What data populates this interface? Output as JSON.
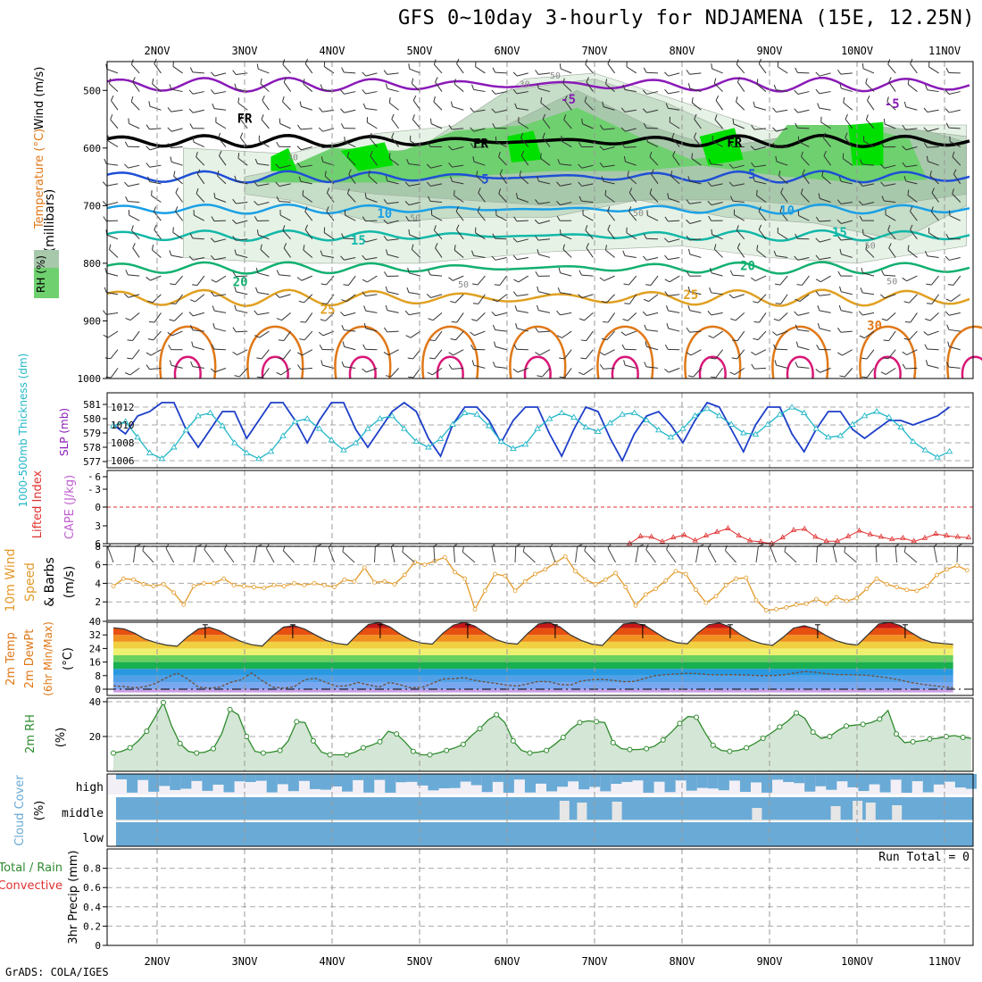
{
  "title": "GFS 0~10day 3-hourly for NDJAMENA (15E, 12.25N)",
  "footer": "GrADS: COLA/IGES",
  "dates": [
    "2NOV",
    "3NOV",
    "4NOV",
    "5NOV",
    "6NOV",
    "7NOV",
    "8NOV",
    "9NOV",
    "10NOV",
    "11NOV"
  ],
  "colors": {
    "purple": "#8a1ab8",
    "blue": "#1f4fd6",
    "lightblue": "#1aa0e6",
    "teal": "#12b8a8",
    "green": "#12b070",
    "orange": "#e0a020",
    "darkorange": "#e07818",
    "magenta": "#d81878",
    "cloud": "#6aaad6",
    "rh_green": "#2e8b2e",
    "wind_orange": "#e39a2a",
    "slp_blue": "#1e3fc8",
    "thick_cyan": "#22b6c8",
    "lifted_red": "#e03030",
    "cape_purple": "#c060d0"
  },
  "chart_data": [
    {
      "type": "area",
      "panel": "upper-air",
      "ylabel": "(millibars)",
      "legend": [
        "RH (%)",
        "Temperature (°C)",
        "Wind (m/s)"
      ],
      "y_ticks": [
        500,
        600,
        700,
        800,
        900,
        1000
      ],
      "ylim": [
        1000,
        450
      ],
      "contour_labels": [
        {
          "text": "-5",
          "x": 4.7,
          "y": 515
        },
        {
          "text": "-5",
          "x": 8.4,
          "y": 523
        },
        {
          "text": "FR",
          "x": 1.0,
          "y": 548
        },
        {
          "text": "FR",
          "x": 3.7,
          "y": 592
        },
        {
          "text": "FR",
          "x": 6.6,
          "y": 590
        },
        {
          "text": "5",
          "x": 3.75,
          "y": 654
        },
        {
          "text": "5",
          "x": 6.8,
          "y": 645
        },
        {
          "text": "10",
          "x": 2.6,
          "y": 713
        },
        {
          "text": "10",
          "x": 7.2,
          "y": 708
        },
        {
          "text": "15",
          "x": 2.3,
          "y": 760
        },
        {
          "text": "15",
          "x": 7.8,
          "y": 746
        },
        {
          "text": "20",
          "x": 0.95,
          "y": 832
        },
        {
          "text": "20",
          "x": 6.75,
          "y": 804
        },
        {
          "text": "25",
          "x": 1.95,
          "y": 880
        },
        {
          "text": "25",
          "x": 6.1,
          "y": 854
        },
        {
          "text": "30",
          "x": 8.2,
          "y": 908
        }
      ],
      "rh_labels": [
        {
          "text": "50",
          "x": 4.55,
          "y": 473
        },
        {
          "text": "30",
          "x": 4.2,
          "y": 488
        },
        {
          "text": "30",
          "x": 1.55,
          "y": 615
        },
        {
          "text": "50",
          "x": 2.95,
          "y": 720
        },
        {
          "text": "50",
          "x": 5.5,
          "y": 712
        },
        {
          "text": "50",
          "x": 8.15,
          "y": 768
        },
        {
          "text": "50",
          "x": 3.5,
          "y": 836
        },
        {
          "text": "50",
          "x": 8.4,
          "y": 830
        }
      ]
    },
    {
      "type": "line",
      "panel": "slp-thickness",
      "ylabel_left": "1000-500mb Thickness (dm)",
      "ylabel_right": "SLP (mb)",
      "left_ticks": [
        577,
        578,
        579,
        580,
        581
      ],
      "right_ticks": [
        1006,
        1008,
        1010,
        1012
      ],
      "series": [
        {
          "name": "SLP (mb)",
          "color": "#1e3fc8",
          "values": [
            1010.0,
            1009.0,
            1011.0,
            1011.5,
            1012.5,
            1012.5,
            1009.5,
            1007.5,
            1009.5,
            1011.5,
            1011.5,
            1008.5,
            1010.5,
            1012.5,
            1012.5,
            1010.5,
            1008.0,
            1010.5,
            1012.5,
            1012.5,
            1009.5,
            1007.5,
            1009.5,
            1011.5,
            1012.5,
            1011.5,
            1008.5,
            1006.5,
            1010.0,
            1012.0,
            1012.0,
            1010.5,
            1008.0,
            1010.5,
            1012.0,
            1012.0,
            1009.0,
            1006.5,
            1009.5,
            1012.0,
            1011.5,
            1008.5,
            1006.0,
            1009.0,
            1011.0,
            1011.5,
            1010.0,
            1008.0,
            1010.5,
            1012.5,
            1012.0,
            1009.5,
            1007.0,
            1010.0,
            1012.0,
            1012.0,
            1009.0,
            1007.0,
            1009.5,
            1011.5,
            1011.5,
            1009.5,
            1008.5,
            1009.5,
            1010.5,
            1010.5,
            1010.0,
            1010.5,
            1011.0,
            1012.0
          ]
        },
        {
          "name": "Thickness (dm)",
          "color": "#22b6c8",
          "values": [
            579.5,
            579.8,
            578.7,
            577.6,
            577.2,
            578.0,
            579.2,
            580.2,
            580.4,
            579.5,
            578.3,
            577.6,
            577.2,
            577.7,
            578.8,
            579.8,
            580.0,
            579.3,
            578.5,
            577.8,
            578.3,
            579.3,
            580.0,
            580.2,
            579.3,
            578.4,
            578.0,
            578.6,
            579.6,
            580.4,
            580.3,
            579.5,
            578.4,
            577.9,
            578.2,
            579.3,
            580.0,
            580.4,
            580.1,
            579.4,
            579.1,
            579.7,
            580.3,
            580.4,
            579.9,
            579.2,
            578.7,
            579.3,
            580.2,
            580.7,
            580.2,
            579.6,
            579.0,
            578.9,
            579.6,
            580.3,
            580.8,
            580.4,
            579.3,
            578.7,
            578.8,
            579.6,
            580.2,
            580.5,
            580.1,
            579.4,
            578.4,
            577.8,
            577.3,
            577.7
          ]
        }
      ]
    },
    {
      "type": "line",
      "panel": "cape-lifted",
      "ylabel_left": "Lifted Index",
      "ylabel_right": "CAPE (J/kg)",
      "ticks": [
        6,
        3,
        0,
        -3,
        -6
      ],
      "series": [
        {
          "name": "Lifted Index",
          "color": "#e03030",
          "x_start": 5.4,
          "values": [
            6.0,
            4.8,
            4.9,
            5.7,
            5.0,
            4.6,
            5.5,
            4.7,
            4.1,
            3.5,
            4.7,
            5.5,
            5.7,
            6.0,
            5.0,
            3.8,
            3.6,
            4.9,
            5.6,
            5.6,
            4.8,
            3.9,
            4.5,
            4.9,
            5.3,
            5.1,
            5.6,
            5.1,
            4.4,
            4.7,
            4.9,
            5.0
          ]
        }
      ]
    },
    {
      "type": "line",
      "panel": "wind10m",
      "ylabel": "10m Wind Speed & Barbs (m/s)",
      "yticks": [
        2,
        4,
        6,
        8
      ],
      "ylim": [
        0,
        8
      ],
      "series": [
        {
          "name": "10m Wind Speed",
          "color": "#e39a2a",
          "values": [
            3.7,
            4.5,
            4.4,
            3.9,
            3.7,
            3.9,
            3.0,
            1.7,
            3.7,
            4.0,
            4.0,
            4.5,
            3.8,
            3.7,
            3.6,
            3.5,
            3.8,
            3.7,
            4.0,
            3.8,
            4.0,
            3.8,
            3.6,
            4.4,
            4.2,
            5.7,
            4.1,
            4.2,
            3.9,
            4.9,
            6.3,
            6.0,
            6.4,
            6.8,
            5.2,
            4.5,
            1.2,
            3.2,
            5.0,
            4.8,
            3.2,
            4.2,
            5.0,
            5.5,
            6.2,
            6.9,
            5.3,
            4.4,
            3.9,
            4.4,
            5.1,
            3.6,
            1.6,
            2.8,
            3.4,
            4.3,
            5.3,
            5.0,
            3.3,
            1.9,
            2.6,
            3.8,
            4.5,
            4.6,
            2.2,
            1.1,
            1.2,
            1.4,
            1.7,
            1.8,
            2.3,
            1.8,
            2.5,
            2.1,
            2.4,
            3.4,
            4.5,
            3.9,
            3.6,
            3.3,
            3.2,
            3.7,
            4.9,
            5.5,
            5.9,
            5.4
          ]
        }
      ]
    },
    {
      "type": "area",
      "panel": "temp2m",
      "ylabel": "2m Temp 2m DewPt (6hr Min/Max) (°C)",
      "yticks": [
        0,
        8,
        16,
        24,
        32,
        40
      ],
      "ylim": [
        -2,
        40
      ],
      "series": [
        {
          "name": "2m Temp",
          "values": [
            36.2,
            35.5,
            33.0,
            29.5,
            27.5,
            26.0,
            25.3,
            31.0,
            35.5,
            36.5,
            34.5,
            31.0,
            28.2,
            26.2,
            25.4,
            31.6,
            36.6,
            37.4,
            35.4,
            32.0,
            28.8,
            27.0,
            26.2,
            32.6,
            38.2,
            39.2,
            36.8,
            32.4,
            29.0,
            27.2,
            26.6,
            33.0,
            37.8,
            39.4,
            37.2,
            33.0,
            29.2,
            27.2,
            26.6,
            33.0,
            38.4,
            39.2,
            36.8,
            32.0,
            28.8,
            26.6,
            25.8,
            32.4,
            38.4,
            39.0,
            37.6,
            33.6,
            29.6,
            27.4,
            26.8,
            33.2,
            38.0,
            39.0,
            36.8,
            32.2,
            28.8,
            26.8,
            25.8,
            30.6,
            36.0,
            37.4,
            35.6,
            31.8,
            28.6,
            26.8,
            26.0,
            32.2,
            38.4,
            39.4,
            37.6,
            33.6,
            29.8,
            27.6,
            27.0,
            26.4
          ]
        },
        {
          "name": "2m DewPt",
          "values": [
            2.0,
            1.5,
            0.8,
            1.5,
            3.5,
            6.8,
            9.5,
            6.0,
            1.2,
            0.6,
            1.2,
            4.0,
            5.5,
            9.6,
            5.0,
            1.2,
            0.6,
            1.4,
            5.6,
            6.4,
            4.0,
            1.8,
            2.0,
            4.0,
            2.6,
            1.2,
            4.0,
            2.6,
            0.8,
            1.0,
            3.4,
            6.0,
            6.2,
            6.8,
            5.2,
            4.2,
            3.4,
            2.4,
            1.8,
            3.2,
            4.6,
            4.4,
            2.8,
            2.4,
            4.8,
            5.6,
            5.8,
            5.2,
            4.4,
            4.6,
            6.4,
            8.0,
            8.6,
            9.0,
            9.4,
            9.2,
            8.6,
            8.4,
            8.6,
            8.4,
            8.2,
            8.0,
            8.0,
            8.4,
            9.4,
            10.4,
            10.0,
            9.2,
            8.6,
            8.6,
            8.4,
            8.2,
            7.4,
            6.6,
            5.4,
            4.0,
            3.0,
            2.2,
            1.4,
            0.8
          ]
        }
      ]
    },
    {
      "type": "area",
      "panel": "rh2m",
      "ylabel": "2m RH (%)",
      "yticks": [
        20,
        40
      ],
      "ylim": [
        0,
        42
      ],
      "series": [
        {
          "name": "2m RH",
          "color": "#2e8b2e",
          "values": [
            10.5,
            11.5,
            13.5,
            17.5,
            23.0,
            31.0,
            39.5,
            26.0,
            16.0,
            11.5,
            10.5,
            11.0,
            13.0,
            21.5,
            35.5,
            32.5,
            20.0,
            11.5,
            10.5,
            11.0,
            12.0,
            17.5,
            28.5,
            28.0,
            17.5,
            11.0,
            9.5,
            9.5,
            9.5,
            11.0,
            13.5,
            15.0,
            17.0,
            23.0,
            21.5,
            17.0,
            11.5,
            9.5,
            9.5,
            10.5,
            12.0,
            13.5,
            15.5,
            20.5,
            24.5,
            29.5,
            32.5,
            28.0,
            17.5,
            12.0,
            10.5,
            11.0,
            12.0,
            15.5,
            19.5,
            24.5,
            28.0,
            29.0,
            28.5,
            28.0,
            16.5,
            13.0,
            12.5,
            12.5,
            13.0,
            14.5,
            18.0,
            22.5,
            27.5,
            31.5,
            31.0,
            22.5,
            15.0,
            12.0,
            11.5,
            12.0,
            13.5,
            16.0,
            19.0,
            22.0,
            25.5,
            29.0,
            33.5,
            30.5,
            22.5,
            19.0,
            20.0,
            23.5,
            26.0,
            26.5,
            27.0,
            28.0,
            30.0,
            35.0,
            21.5,
            16.5,
            17.0,
            17.5,
            18.5,
            19.0,
            20.0,
            20.5,
            19.5,
            19.0
          ]
        }
      ]
    },
    {
      "type": "bar",
      "panel": "cloud-cover",
      "ylabel": "Cloud Cover (%)",
      "categories": [
        "high",
        "middle",
        "low"
      ]
    },
    {
      "type": "line",
      "panel": "precip",
      "ylabel": "3hr Precip (mm)",
      "legend": [
        "Total / Rain",
        "Convective"
      ],
      "yticks": [
        0,
        0.2,
        0.4,
        0.6,
        0.8
      ],
      "ylim": [
        0,
        1
      ],
      "annotation": "Run Total = 0"
    }
  ]
}
